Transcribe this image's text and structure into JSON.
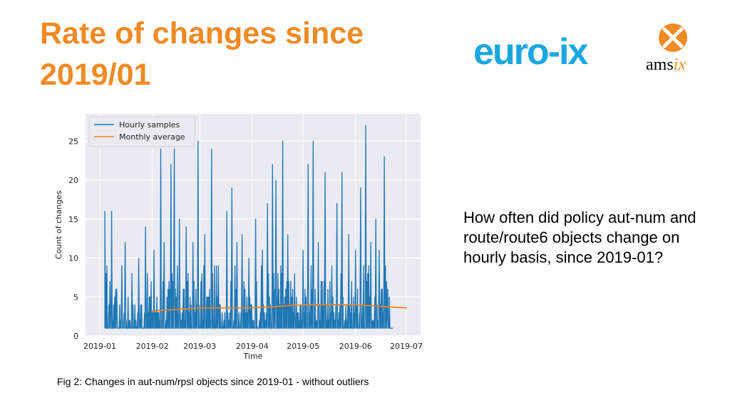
{
  "slide": {
    "title": "Rate of changes since 2019/01",
    "description": "How often did policy aut-num and route/route6 objects change on hourly basis, since 2019-01?",
    "caption": "Fig 2: Changes in aut-num/rpsl objects since 2019-01 - without outliers",
    "title_color": "#f08a24"
  },
  "logos": {
    "euroix": "euro-ix",
    "amsix_prefix": "ams",
    "amsix_suffix": "ix",
    "euroix_color": "#1aa7e0",
    "amsix_color": "#f08a24"
  },
  "chart_data": {
    "type": "line",
    "xlabel": "Time",
    "ylabel": "Count of changes",
    "x_ticks": [
      "2019-01",
      "2019-02",
      "2019-03",
      "2019-04",
      "2019-05",
      "2019-06",
      "2019-07"
    ],
    "y_ticks": [
      0,
      5,
      10,
      15,
      20,
      25
    ],
    "xlim": [
      "2019-01-01",
      "2019-07-01"
    ],
    "ylim": [
      0,
      28.5
    ],
    "grid": true,
    "legend_position": "top-left",
    "series": [
      {
        "name": "Hourly samples",
        "color": "#1f77b4",
        "peaks": [
          {
            "x": "2019-01-04",
            "y": 16
          },
          {
            "x": "2019-01-07",
            "y": 7
          },
          {
            "x": "2019-01-08",
            "y": 16
          },
          {
            "x": "2019-01-11",
            "y": 6
          },
          {
            "x": "2019-01-14",
            "y": 9
          },
          {
            "x": "2019-01-16",
            "y": 12
          },
          {
            "x": "2019-01-20",
            "y": 8
          },
          {
            "x": "2019-01-24",
            "y": 10
          },
          {
            "x": "2019-01-28",
            "y": 14
          },
          {
            "x": "2019-02-02",
            "y": 11
          },
          {
            "x": "2019-02-06",
            "y": 24
          },
          {
            "x": "2019-02-08",
            "y": 12
          },
          {
            "x": "2019-02-12",
            "y": 22
          },
          {
            "x": "2019-02-14",
            "y": 24
          },
          {
            "x": "2019-02-17",
            "y": 15
          },
          {
            "x": "2019-02-21",
            "y": 14
          },
          {
            "x": "2019-02-25",
            "y": 12
          },
          {
            "x": "2019-02-28",
            "y": 25
          },
          {
            "x": "2019-03-04",
            "y": 13
          },
          {
            "x": "2019-03-08",
            "y": 24
          },
          {
            "x": "2019-03-12",
            "y": 9
          },
          {
            "x": "2019-03-17",
            "y": 16
          },
          {
            "x": "2019-03-20",
            "y": 19
          },
          {
            "x": "2019-03-23",
            "y": 12
          },
          {
            "x": "2019-03-26",
            "y": 13
          },
          {
            "x": "2019-03-30",
            "y": 10
          },
          {
            "x": "2019-04-03",
            "y": 15
          },
          {
            "x": "2019-04-07",
            "y": 11
          },
          {
            "x": "2019-04-10",
            "y": 17
          },
          {
            "x": "2019-04-13",
            "y": 22
          },
          {
            "x": "2019-04-15",
            "y": 20
          },
          {
            "x": "2019-04-19",
            "y": 25
          },
          {
            "x": "2019-04-22",
            "y": 13
          },
          {
            "x": "2019-04-26",
            "y": 8
          },
          {
            "x": "2019-05-01",
            "y": 11
          },
          {
            "x": "2019-05-04",
            "y": 22
          },
          {
            "x": "2019-05-07",
            "y": 25
          },
          {
            "x": "2019-05-10",
            "y": 12
          },
          {
            "x": "2019-05-14",
            "y": 21
          },
          {
            "x": "2019-05-18",
            "y": 9
          },
          {
            "x": "2019-05-21",
            "y": 17
          },
          {
            "x": "2019-05-24",
            "y": 21
          },
          {
            "x": "2019-05-28",
            "y": 13
          },
          {
            "x": "2019-06-01",
            "y": 11
          },
          {
            "x": "2019-06-04",
            "y": 19
          },
          {
            "x": "2019-06-07",
            "y": 27
          },
          {
            "x": "2019-06-10",
            "y": 12
          },
          {
            "x": "2019-06-13",
            "y": 15
          },
          {
            "x": "2019-06-15",
            "y": 11
          },
          {
            "x": "2019-06-18",
            "y": 23
          },
          {
            "x": "2019-06-20",
            "y": 6
          },
          {
            "x": "2019-06-21",
            "y": 5
          }
        ]
      },
      {
        "name": "Monthly average",
        "color": "#ff7f0e",
        "points": [
          {
            "x": "2019-02-01",
            "y": 3.2
          },
          {
            "x": "2019-03-01",
            "y": 3.6
          },
          {
            "x": "2019-04-01",
            "y": 3.6
          },
          {
            "x": "2019-05-01",
            "y": 4.0
          },
          {
            "x": "2019-06-01",
            "y": 4.0
          },
          {
            "x": "2019-07-01",
            "y": 3.6
          }
        ]
      }
    ]
  }
}
